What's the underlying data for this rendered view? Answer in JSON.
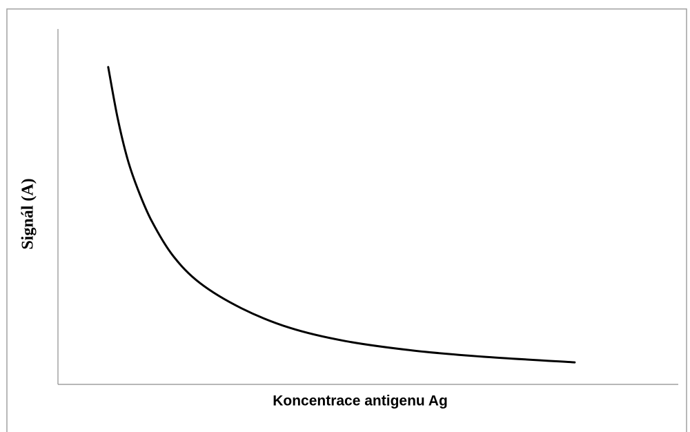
{
  "chart_data": {
    "type": "line",
    "x_label": "Koncentrace antigenu Ag",
    "y_label": "Signál (A)",
    "x": [
      8.1,
      9.6,
      11.2,
      12.9,
      15.1,
      18.5,
      22.9,
      29.6,
      37.4,
      46.3,
      57.4,
      68.5,
      83.3
    ],
    "series": [
      {
        "color": "#000000",
        "values": [
          89.3,
          75.1,
          63.5,
          54.8,
          46.0,
          36.3,
          28.5,
          21.4,
          15.9,
          12.2,
          9.5,
          7.8,
          6.2
        ]
      }
    ],
    "xlim": [
      0,
      100
    ],
    "ylim": [
      0,
      100
    ]
  }
}
